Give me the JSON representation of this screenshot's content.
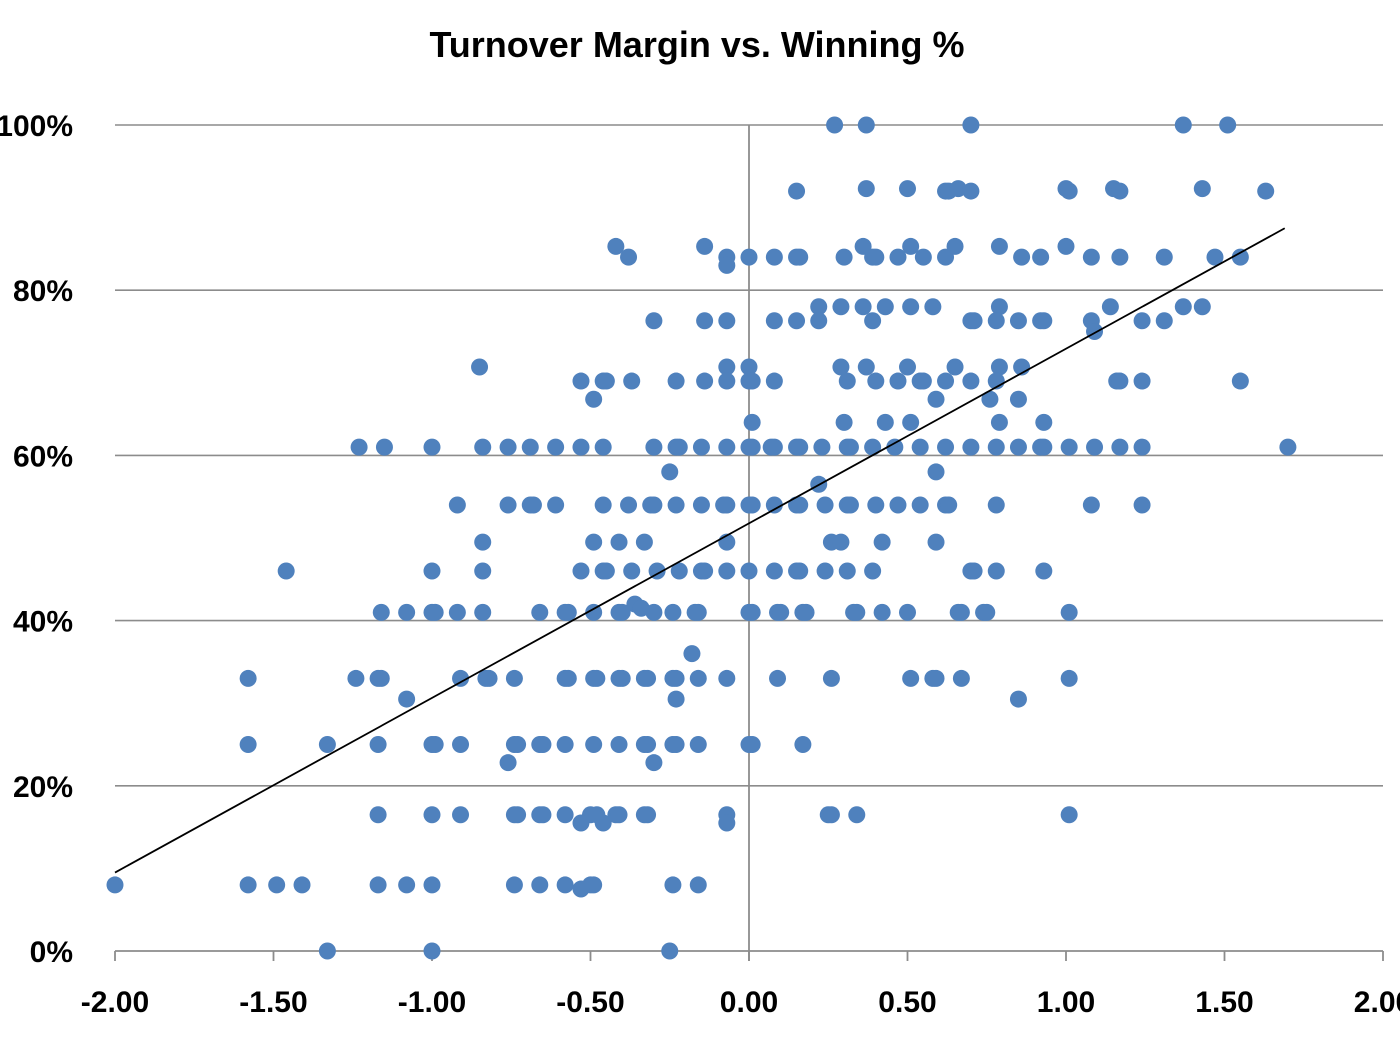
{
  "chart_data": {
    "type": "scatter",
    "title": "Turnover Margin vs. Winning %",
    "xlabel": "",
    "ylabel": "",
    "xlim": [
      -2.0,
      2.0
    ],
    "ylim": [
      0,
      1
    ],
    "x_ticks": [
      -2.0,
      -1.5,
      -1.0,
      -0.5,
      0.0,
      0.5,
      1.0,
      1.5,
      2.0
    ],
    "x_tick_labels": [
      "-2.00",
      "-1.50",
      "-1.00",
      "-0.50",
      "0.00",
      "0.50",
      "1.00",
      "1.50",
      "2.00"
    ],
    "y_ticks": [
      0,
      0.2,
      0.4,
      0.6,
      0.8,
      1.0
    ],
    "y_tick_labels": [
      "0%",
      "20%",
      "40%",
      "60%",
      "80%",
      "100%"
    ],
    "grid": "horizontal",
    "colors": {
      "points": "#4f81bd",
      "trendline": "#000000",
      "gridlines": "#8c8c8c"
    },
    "trendline": {
      "x": [
        -2.0,
        1.69
      ],
      "y": [
        0.095,
        0.875
      ]
    },
    "points": [
      [
        0.27,
        1.0
      ],
      [
        0.37,
        1.0
      ],
      [
        0.7,
        1.0
      ],
      [
        1.37,
        1.0
      ],
      [
        1.51,
        1.0
      ],
      [
        0.15,
        0.92
      ],
      [
        0.37,
        0.923
      ],
      [
        0.5,
        0.923
      ],
      [
        0.62,
        0.92
      ],
      [
        0.63,
        0.92
      ],
      [
        0.66,
        0.923
      ],
      [
        0.7,
        0.92
      ],
      [
        1.0,
        0.923
      ],
      [
        1.01,
        0.92
      ],
      [
        1.15,
        0.923
      ],
      [
        1.17,
        0.92
      ],
      [
        1.43,
        0.923
      ],
      [
        1.63,
        0.92
      ],
      [
        -0.42,
        0.853
      ],
      [
        -0.38,
        0.84
      ],
      [
        -0.14,
        0.853
      ],
      [
        -0.07,
        0.84
      ],
      [
        -0.07,
        0.83
      ],
      [
        0.0,
        0.84
      ],
      [
        0.08,
        0.84
      ],
      [
        0.15,
        0.84
      ],
      [
        0.16,
        0.84
      ],
      [
        0.3,
        0.84
      ],
      [
        0.36,
        0.853
      ],
      [
        0.39,
        0.84
      ],
      [
        0.4,
        0.84
      ],
      [
        0.47,
        0.84
      ],
      [
        0.51,
        0.853
      ],
      [
        0.55,
        0.84
      ],
      [
        0.62,
        0.84
      ],
      [
        0.65,
        0.853
      ],
      [
        0.79,
        0.853
      ],
      [
        0.86,
        0.84
      ],
      [
        0.92,
        0.84
      ],
      [
        1.0,
        0.853
      ],
      [
        1.08,
        0.84
      ],
      [
        1.17,
        0.84
      ],
      [
        1.31,
        0.84
      ],
      [
        1.47,
        0.84
      ],
      [
        1.55,
        0.84
      ],
      [
        0.22,
        0.78
      ],
      [
        0.29,
        0.78
      ],
      [
        0.36,
        0.78
      ],
      [
        0.43,
        0.78
      ],
      [
        0.51,
        0.78
      ],
      [
        0.58,
        0.78
      ],
      [
        0.79,
        0.78
      ],
      [
        1.14,
        0.78
      ],
      [
        1.37,
        0.78
      ],
      [
        1.43,
        0.78
      ],
      [
        -0.3,
        0.763
      ],
      [
        -0.14,
        0.763
      ],
      [
        -0.07,
        0.763
      ],
      [
        0.08,
        0.763
      ],
      [
        0.15,
        0.763
      ],
      [
        0.22,
        0.763
      ],
      [
        0.39,
        0.763
      ],
      [
        0.7,
        0.763
      ],
      [
        0.71,
        0.763
      ],
      [
        0.78,
        0.763
      ],
      [
        0.85,
        0.763
      ],
      [
        0.92,
        0.763
      ],
      [
        0.93,
        0.763
      ],
      [
        1.08,
        0.763
      ],
      [
        1.24,
        0.763
      ],
      [
        1.31,
        0.763
      ],
      [
        1.09,
        0.75
      ],
      [
        -0.85,
        0.707
      ],
      [
        -0.07,
        0.707
      ],
      [
        0.0,
        0.707
      ],
      [
        0.29,
        0.707
      ],
      [
        0.37,
        0.707
      ],
      [
        0.5,
        0.707
      ],
      [
        0.65,
        0.707
      ],
      [
        0.79,
        0.707
      ],
      [
        0.86,
        0.707
      ],
      [
        -0.53,
        0.69
      ],
      [
        -0.46,
        0.69
      ],
      [
        -0.45,
        0.69
      ],
      [
        -0.37,
        0.69
      ],
      [
        -0.23,
        0.69
      ],
      [
        -0.14,
        0.69
      ],
      [
        -0.07,
        0.69
      ],
      [
        0.0,
        0.69
      ],
      [
        0.01,
        0.69
      ],
      [
        0.08,
        0.69
      ],
      [
        0.31,
        0.69
      ],
      [
        0.4,
        0.69
      ],
      [
        0.47,
        0.69
      ],
      [
        0.54,
        0.69
      ],
      [
        0.55,
        0.69
      ],
      [
        0.62,
        0.69
      ],
      [
        0.7,
        0.69
      ],
      [
        0.78,
        0.69
      ],
      [
        1.16,
        0.69
      ],
      [
        1.17,
        0.69
      ],
      [
        1.24,
        0.69
      ],
      [
        1.55,
        0.69
      ],
      [
        -0.49,
        0.668
      ],
      [
        0.59,
        0.668
      ],
      [
        0.76,
        0.668
      ],
      [
        0.85,
        0.668
      ],
      [
        0.01,
        0.64
      ],
      [
        0.3,
        0.64
      ],
      [
        0.43,
        0.64
      ],
      [
        0.51,
        0.64
      ],
      [
        0.79,
        0.64
      ],
      [
        0.93,
        0.64
      ],
      [
        -1.23,
        0.61
      ],
      [
        -1.15,
        0.61
      ],
      [
        -1.0,
        0.61
      ],
      [
        -0.84,
        0.61
      ],
      [
        -0.76,
        0.61
      ],
      [
        -0.69,
        0.61
      ],
      [
        -0.61,
        0.61
      ],
      [
        -0.53,
        0.61
      ],
      [
        -0.46,
        0.61
      ],
      [
        -0.3,
        0.61
      ],
      [
        -0.23,
        0.61
      ],
      [
        -0.22,
        0.61
      ],
      [
        -0.15,
        0.61
      ],
      [
        -0.07,
        0.61
      ],
      [
        0.0,
        0.61
      ],
      [
        0.01,
        0.61
      ],
      [
        0.07,
        0.61
      ],
      [
        0.08,
        0.61
      ],
      [
        0.15,
        0.61
      ],
      [
        0.16,
        0.61
      ],
      [
        0.23,
        0.61
      ],
      [
        0.31,
        0.61
      ],
      [
        0.32,
        0.61
      ],
      [
        0.39,
        0.61
      ],
      [
        0.46,
        0.61
      ],
      [
        0.54,
        0.61
      ],
      [
        0.62,
        0.61
      ],
      [
        0.7,
        0.61
      ],
      [
        0.78,
        0.61
      ],
      [
        0.85,
        0.61
      ],
      [
        0.92,
        0.61
      ],
      [
        0.93,
        0.61
      ],
      [
        1.01,
        0.61
      ],
      [
        1.09,
        0.61
      ],
      [
        1.17,
        0.61
      ],
      [
        1.24,
        0.61
      ],
      [
        1.7,
        0.61
      ],
      [
        -0.25,
        0.58
      ],
      [
        0.59,
        0.58
      ],
      [
        0.22,
        0.565
      ],
      [
        -0.92,
        0.54
      ],
      [
        -0.76,
        0.54
      ],
      [
        -0.69,
        0.54
      ],
      [
        -0.68,
        0.54
      ],
      [
        -0.61,
        0.54
      ],
      [
        -0.46,
        0.54
      ],
      [
        -0.38,
        0.54
      ],
      [
        -0.31,
        0.54
      ],
      [
        -0.3,
        0.54
      ],
      [
        -0.23,
        0.54
      ],
      [
        -0.15,
        0.54
      ],
      [
        -0.08,
        0.54
      ],
      [
        -0.07,
        0.54
      ],
      [
        0.0,
        0.54
      ],
      [
        0.01,
        0.54
      ],
      [
        0.08,
        0.54
      ],
      [
        0.15,
        0.54
      ],
      [
        0.16,
        0.54
      ],
      [
        0.24,
        0.54
      ],
      [
        0.31,
        0.54
      ],
      [
        0.32,
        0.54
      ],
      [
        0.4,
        0.54
      ],
      [
        0.47,
        0.54
      ],
      [
        0.54,
        0.54
      ],
      [
        0.62,
        0.54
      ],
      [
        0.63,
        0.54
      ],
      [
        0.78,
        0.54
      ],
      [
        1.08,
        0.54
      ],
      [
        1.24,
        0.54
      ],
      [
        -0.84,
        0.495
      ],
      [
        -0.49,
        0.495
      ],
      [
        -0.41,
        0.495
      ],
      [
        -0.33,
        0.495
      ],
      [
        -0.07,
        0.495
      ],
      [
        0.26,
        0.495
      ],
      [
        0.29,
        0.495
      ],
      [
        0.42,
        0.495
      ],
      [
        0.59,
        0.495
      ],
      [
        -1.46,
        0.46
      ],
      [
        -1.0,
        0.46
      ],
      [
        -0.84,
        0.46
      ],
      [
        -0.53,
        0.46
      ],
      [
        -0.46,
        0.46
      ],
      [
        -0.45,
        0.46
      ],
      [
        -0.37,
        0.46
      ],
      [
        -0.29,
        0.46
      ],
      [
        -0.22,
        0.46
      ],
      [
        -0.15,
        0.46
      ],
      [
        -0.14,
        0.46
      ],
      [
        -0.07,
        0.46
      ],
      [
        0.0,
        0.46
      ],
      [
        0.08,
        0.46
      ],
      [
        0.15,
        0.46
      ],
      [
        0.16,
        0.46
      ],
      [
        0.24,
        0.46
      ],
      [
        0.31,
        0.46
      ],
      [
        0.39,
        0.46
      ],
      [
        0.7,
        0.46
      ],
      [
        0.71,
        0.46
      ],
      [
        0.78,
        0.46
      ],
      [
        0.93,
        0.46
      ],
      [
        -0.36,
        0.42
      ],
      [
        -0.34,
        0.415
      ],
      [
        -1.16,
        0.41
      ],
      [
        -1.08,
        0.41
      ],
      [
        -1.0,
        0.41
      ],
      [
        -0.99,
        0.41
      ],
      [
        -0.92,
        0.41
      ],
      [
        -0.84,
        0.41
      ],
      [
        -0.66,
        0.41
      ],
      [
        -0.58,
        0.41
      ],
      [
        -0.57,
        0.41
      ],
      [
        -0.49,
        0.41
      ],
      [
        -0.41,
        0.41
      ],
      [
        -0.4,
        0.41
      ],
      [
        -0.3,
        0.41
      ],
      [
        -0.24,
        0.41
      ],
      [
        -0.17,
        0.41
      ],
      [
        -0.16,
        0.41
      ],
      [
        0.0,
        0.41
      ],
      [
        0.01,
        0.41
      ],
      [
        0.09,
        0.41
      ],
      [
        0.1,
        0.41
      ],
      [
        0.17,
        0.41
      ],
      [
        0.18,
        0.41
      ],
      [
        0.33,
        0.41
      ],
      [
        0.34,
        0.41
      ],
      [
        0.42,
        0.41
      ],
      [
        0.5,
        0.41
      ],
      [
        0.66,
        0.41
      ],
      [
        0.67,
        0.41
      ],
      [
        0.74,
        0.41
      ],
      [
        0.75,
        0.41
      ],
      [
        1.01,
        0.41
      ],
      [
        -0.18,
        0.36
      ],
      [
        -1.58,
        0.33
      ],
      [
        -1.24,
        0.33
      ],
      [
        -1.17,
        0.33
      ],
      [
        -1.16,
        0.33
      ],
      [
        -0.91,
        0.33
      ],
      [
        -0.83,
        0.33
      ],
      [
        -0.82,
        0.33
      ],
      [
        -0.74,
        0.33
      ],
      [
        -0.58,
        0.33
      ],
      [
        -0.57,
        0.33
      ],
      [
        -0.49,
        0.33
      ],
      [
        -0.48,
        0.33
      ],
      [
        -0.41,
        0.33
      ],
      [
        -0.4,
        0.33
      ],
      [
        -0.33,
        0.33
      ],
      [
        -0.32,
        0.33
      ],
      [
        -0.24,
        0.33
      ],
      [
        -0.23,
        0.33
      ],
      [
        -0.16,
        0.33
      ],
      [
        -0.07,
        0.33
      ],
      [
        0.09,
        0.33
      ],
      [
        0.26,
        0.33
      ],
      [
        0.51,
        0.33
      ],
      [
        0.58,
        0.33
      ],
      [
        0.59,
        0.33
      ],
      [
        0.67,
        0.33
      ],
      [
        1.01,
        0.33
      ],
      [
        -1.08,
        0.305
      ],
      [
        -0.23,
        0.305
      ],
      [
        0.85,
        0.305
      ],
      [
        -1.58,
        0.25
      ],
      [
        -1.33,
        0.25
      ],
      [
        -1.17,
        0.25
      ],
      [
        -1.0,
        0.25
      ],
      [
        -0.99,
        0.25
      ],
      [
        -0.91,
        0.25
      ],
      [
        -0.74,
        0.25
      ],
      [
        -0.73,
        0.25
      ],
      [
        -0.66,
        0.25
      ],
      [
        -0.65,
        0.25
      ],
      [
        -0.58,
        0.25
      ],
      [
        -0.49,
        0.25
      ],
      [
        -0.41,
        0.25
      ],
      [
        -0.33,
        0.25
      ],
      [
        -0.32,
        0.25
      ],
      [
        -0.24,
        0.25
      ],
      [
        -0.23,
        0.25
      ],
      [
        -0.16,
        0.25
      ],
      [
        0.0,
        0.25
      ],
      [
        0.01,
        0.25
      ],
      [
        0.17,
        0.25
      ],
      [
        -0.76,
        0.228
      ],
      [
        -0.3,
        0.228
      ],
      [
        -1.17,
        0.165
      ],
      [
        -1.0,
        0.165
      ],
      [
        -0.91,
        0.165
      ],
      [
        -0.74,
        0.165
      ],
      [
        -0.73,
        0.165
      ],
      [
        -0.66,
        0.165
      ],
      [
        -0.65,
        0.165
      ],
      [
        -0.58,
        0.165
      ],
      [
        -0.5,
        0.165
      ],
      [
        -0.48,
        0.165
      ],
      [
        -0.42,
        0.165
      ],
      [
        -0.41,
        0.165
      ],
      [
        -0.33,
        0.165
      ],
      [
        -0.32,
        0.165
      ],
      [
        -0.07,
        0.165
      ],
      [
        0.25,
        0.165
      ],
      [
        0.26,
        0.165
      ],
      [
        0.34,
        0.165
      ],
      [
        1.01,
        0.165
      ],
      [
        -0.53,
        0.155
      ],
      [
        -0.46,
        0.155
      ],
      [
        -0.07,
        0.155
      ],
      [
        -2.0,
        0.08
      ],
      [
        -1.58,
        0.08
      ],
      [
        -1.49,
        0.08
      ],
      [
        -1.41,
        0.08
      ],
      [
        -1.17,
        0.08
      ],
      [
        -1.08,
        0.08
      ],
      [
        -1.0,
        0.08
      ],
      [
        -0.74,
        0.08
      ],
      [
        -0.66,
        0.08
      ],
      [
        -0.58,
        0.08
      ],
      [
        -0.5,
        0.08
      ],
      [
        -0.49,
        0.08
      ],
      [
        -0.24,
        0.08
      ],
      [
        -0.16,
        0.08
      ],
      [
        -0.53,
        0.075
      ],
      [
        -1.33,
        0.0
      ],
      [
        -1.0,
        0.0
      ],
      [
        -0.25,
        0.0
      ]
    ]
  }
}
